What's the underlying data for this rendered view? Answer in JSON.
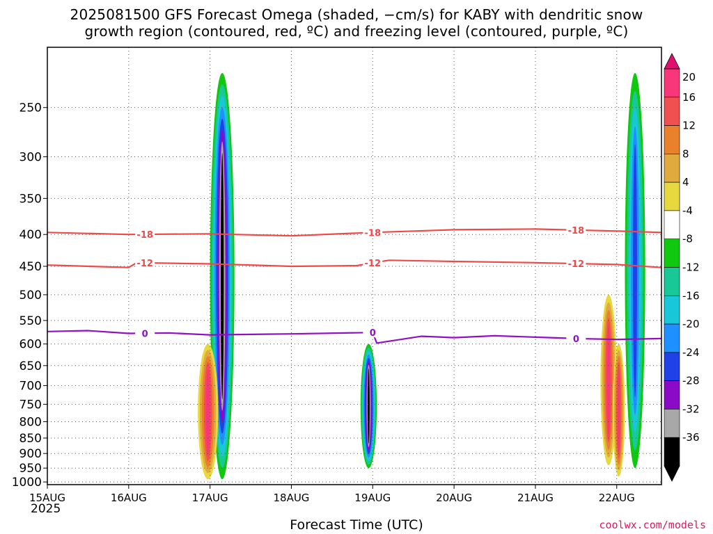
{
  "title_line1": "2025081500 GFS Forecast Omega (shaded, −cm/s) for KABY with dendritic snow",
  "title_line2": "growth region (contoured, red, ºC) and freezing level (contoured, purple, ºC)",
  "xlabel": "Forecast Time (UTC)",
  "year_label": "2025",
  "credit": "coolwx.com/models",
  "chart_data": {
    "type": "heatmap",
    "title": "2025081500 GFS Forecast Omega (shaded, −cm/s) for KABY with dendritic snow growth region (contoured, red, ºC) and freezing level (contoured, purple, ºC)",
    "xlabel": "Forecast Time (UTC)",
    "ylabel": "",
    "x_ticks": [
      "15AUG",
      "16AUG",
      "17AUG",
      "18AUG",
      "19AUG",
      "20AUG",
      "21AUG",
      "22AUG"
    ],
    "x_range_days": [
      0,
      7.55
    ],
    "y_ticks": [
      250,
      300,
      350,
      400,
      450,
      500,
      550,
      600,
      650,
      700,
      750,
      800,
      850,
      900,
      950,
      1000
    ],
    "y_range_hpa": [
      200,
      1010
    ],
    "y_scale": "log-pressure",
    "grid": true,
    "colorbar": {
      "labels": [
        20,
        16,
        12,
        8,
        4,
        -4,
        -8,
        -12,
        -16,
        -20,
        -24,
        -28,
        -32,
        -36
      ],
      "colors": [
        "#f8367a",
        "#f05050",
        "#e8802c",
        "#e0aa3e",
        "#e8d840",
        "#ffffff",
        "#10c810",
        "#18c896",
        "#18c8d8",
        "#1e90ff",
        "#2040e8",
        "#8a0ac8",
        "#a8a8a8",
        "#000000"
      ]
    },
    "contours": [
      {
        "label": "-18",
        "color": "#f04848",
        "points": [
          [
            0,
            397
          ],
          [
            1,
            400
          ],
          [
            2,
            399
          ],
          [
            3,
            402
          ],
          [
            4,
            397
          ],
          [
            5,
            393
          ],
          [
            6,
            392
          ],
          [
            7,
            395
          ],
          [
            7.55,
            397
          ]
        ]
      },
      {
        "label": "-12",
        "color": "#f04848",
        "points": [
          [
            0,
            448
          ],
          [
            1,
            452
          ],
          [
            1.1,
            444
          ],
          [
            2,
            446
          ],
          [
            3,
            450
          ],
          [
            3.8,
            449
          ],
          [
            4.2,
            440
          ],
          [
            5,
            442
          ],
          [
            6,
            444
          ],
          [
            7,
            447
          ],
          [
            7.55,
            452
          ]
        ]
      },
      {
        "label": "0",
        "color": "#9010c8",
        "points": [
          [
            0,
            573
          ],
          [
            0.5,
            571
          ],
          [
            1,
            577
          ],
          [
            1.5,
            576
          ],
          [
            2,
            580
          ],
          [
            3,
            578
          ],
          [
            4,
            575
          ],
          [
            4.05,
            598
          ],
          [
            4.6,
            583
          ],
          [
            5,
            586
          ],
          [
            5.5,
            582
          ],
          [
            6,
            585
          ],
          [
            6.5,
            588
          ],
          [
            7,
            590
          ],
          [
            7.55,
            588
          ]
        ]
      }
    ],
    "features": [
      {
        "t": [
          2.0,
          2.3
        ],
        "p": [
          220,
          990
        ],
        "peak": -36,
        "desc": "strong ascent column 17AUG"
      },
      {
        "t": [
          1.85,
          2.1
        ],
        "p": [
          600,
          990
        ],
        "peak": 20,
        "desc": "descent 17AUG"
      },
      {
        "t": [
          3.85,
          4.05
        ],
        "p": [
          600,
          950
        ],
        "peak": -36,
        "desc": "ascent 19AUG"
      },
      {
        "t": [
          6.8,
          7.0
        ],
        "p": [
          500,
          940
        ],
        "peak": 20,
        "desc": "descent 21AUG"
      },
      {
        "t": [
          7.1,
          7.35
        ],
        "p": [
          220,
          950
        ],
        "peak": -20,
        "desc": "ascent 22AUG"
      },
      {
        "t": [
          6.95,
          7.1
        ],
        "p": [
          600,
          980
        ],
        "peak": 20,
        "desc": "descent 22AUG"
      }
    ]
  }
}
